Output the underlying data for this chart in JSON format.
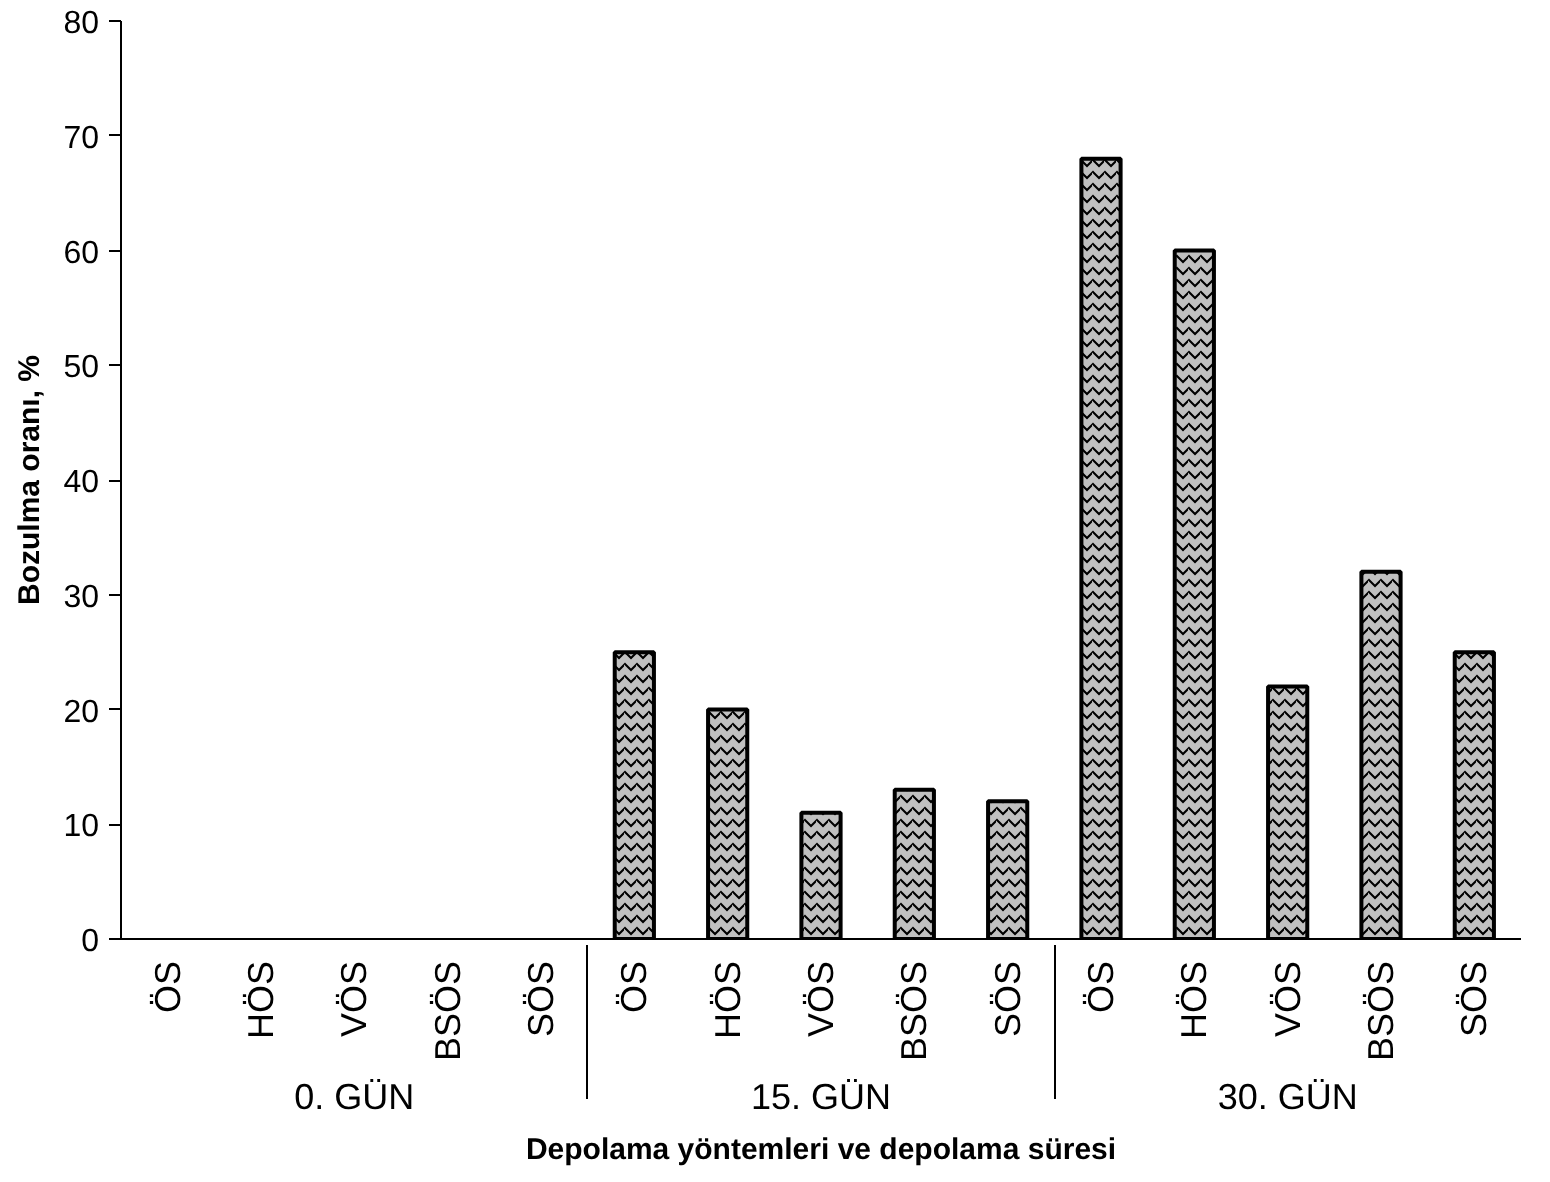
{
  "chart_data": {
    "type": "bar",
    "xlabel": "Depolama yöntemleri ve depolama süresi",
    "ylabel": "Bozulma oranı, %",
    "categories": [
      "ÖS",
      "HÖS",
      "VÖS",
      "BSÖS",
      "SÖS",
      "ÖS",
      "HÖS",
      "VÖS",
      "BSÖS",
      "SÖS",
      "ÖS",
      "HÖS",
      "VÖS",
      "BSÖS",
      "SÖS"
    ],
    "annotations": [
      "0. GÜN",
      "15. GÜN",
      "30. GÜN"
    ],
    "values": [
      0,
      0,
      0,
      0,
      0,
      25,
      20,
      11,
      13,
      12,
      68,
      60,
      22,
      32,
      25
    ],
    "color": "#c0c0c0",
    "ylim": [
      0,
      80
    ],
    "yticks": [
      0,
      10,
      20,
      30,
      40,
      50,
      60,
      70,
      80
    ],
    "grid": false
  }
}
